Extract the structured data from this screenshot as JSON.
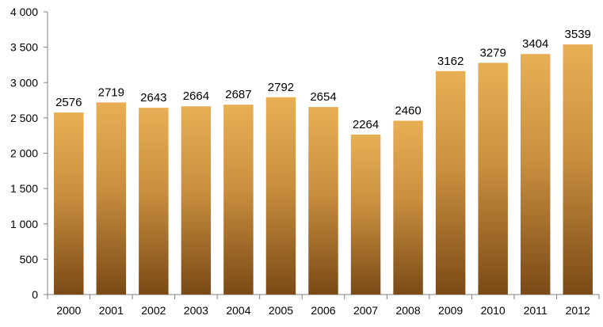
{
  "chart_data": {
    "type": "bar",
    "title": "",
    "xlabel": "",
    "ylabel": "",
    "categories": [
      "2000",
      "2001",
      "2002",
      "2003",
      "2004",
      "2005",
      "2006",
      "2007",
      "2008",
      "2009",
      "2010",
      "2011",
      "2012"
    ],
    "values": [
      2576,
      2719,
      2643,
      2664,
      2687,
      2792,
      2654,
      2264,
      2460,
      3162,
      3279,
      3404,
      3539
    ],
    "value_labels": [
      "2576",
      "2719",
      "2643",
      "2664",
      "2687",
      "2792",
      "2654",
      "2264",
      "2460",
      "3162",
      "3279",
      "3404",
      "3539"
    ],
    "ylim": [
      0,
      4000
    ],
    "y_ticks": [
      0,
      500,
      1000,
      1500,
      2000,
      2500,
      3000,
      3500,
      4000
    ],
    "y_tick_labels": [
      "0",
      "500",
      "1 000",
      "1 500",
      "2 000",
      "2 500",
      "3 000",
      "3 500",
      "4 000"
    ],
    "grid": false,
    "legend": "none",
    "colors": {
      "bar_top": "#E8AF55",
      "bar_mid": "#C98F3F",
      "bar_bottom": "#7A4A16",
      "axis": "#808080"
    }
  }
}
